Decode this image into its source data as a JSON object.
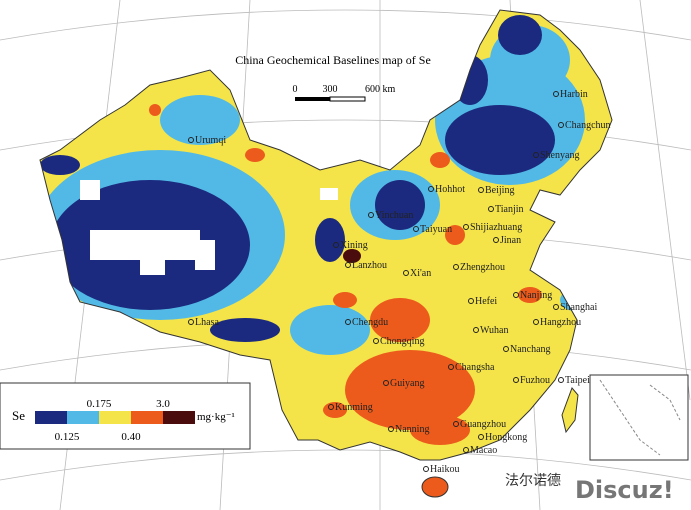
{
  "title": "China Geochemical Baselines map of Se",
  "scale_bar": {
    "labels": [
      "0",
      "300",
      "600 km"
    ]
  },
  "legend": {
    "label": "Se",
    "unit": "mg·kg⁻¹",
    "top_breaks": [
      "0.175",
      "3.0"
    ],
    "bottom_breaks": [
      "0.125",
      "0.40"
    ],
    "colors": [
      "#1b2a7e",
      "#52b9e6",
      "#f4e44a",
      "#ec5b1c",
      "#4a0c0c"
    ]
  },
  "cities": [
    "Harbin",
    "Changchun",
    "Shenyang",
    "Urumqi",
    "Hohhot",
    "Beijing",
    "Tianjin",
    "Yinchuan",
    "Taiyuan",
    "Shijiazhuang",
    "Jinan",
    "Xining",
    "Lanzhou",
    "Xi'an",
    "Zhengzhou",
    "Nanjing",
    "Shanghai",
    "Hefei",
    "Lhasa",
    "Chengdu",
    "Wuhan",
    "Hangzhou",
    "Chongqing",
    "Nanchang",
    "Changsha",
    "Fuzhou",
    "Taipei",
    "Guiyang",
    "Kunming",
    "Nanning",
    "Guangzhou",
    "Hongkong",
    "Macao",
    "Haikou"
  ],
  "watermark": {
    "chinese": "法尔诺德",
    "brand": "Discuz!"
  }
}
